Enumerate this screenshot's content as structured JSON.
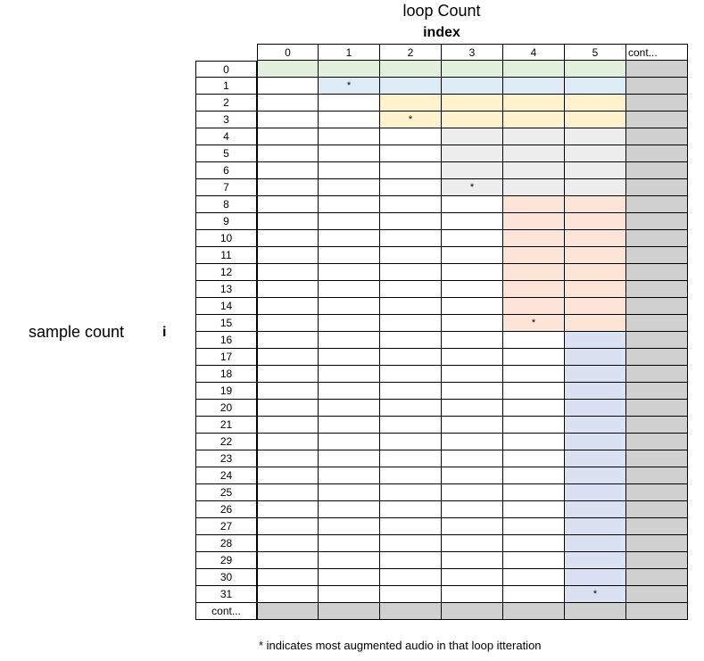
{
  "header": {
    "top_title": "loop Count",
    "sub_title": "index"
  },
  "side": {
    "label": "sample count",
    "variable": "i"
  },
  "table": {
    "col_headers": [
      "0",
      "1",
      "2",
      "3",
      "4",
      "5",
      "cont..."
    ],
    "row_headers": [
      "0",
      "1",
      "2",
      "3",
      "4",
      "5",
      "6",
      "7",
      "8",
      "9",
      "10",
      "11",
      "12",
      "13",
      "14",
      "15",
      "16",
      "17",
      "18",
      "19",
      "20",
      "21",
      "22",
      "23",
      "24",
      "25",
      "26",
      "27",
      "28",
      "29",
      "30",
      "31",
      "cont..."
    ],
    "star_symbol": "*",
    "colors": {
      "loop0": "#e2efda",
      "loop1": "#ddebf7",
      "loop2": "#fff2cc",
      "loop3": "#ededed",
      "loop4": "#fce4d6",
      "loop5": "#d9e1f2",
      "cont": "#d0d0d0",
      "blank": "#ffffff"
    },
    "loops": [
      {
        "col": 0,
        "rows": [
          0,
          0
        ],
        "star_row": null
      },
      {
        "col": 1,
        "rows": [
          1,
          1
        ],
        "star_row": 1
      },
      {
        "col": 2,
        "rows": [
          2,
          3
        ],
        "star_row": 3
      },
      {
        "col": 3,
        "rows": [
          4,
          7
        ],
        "star_row": 7
      },
      {
        "col": 4,
        "rows": [
          8,
          15
        ],
        "star_row": 15
      },
      {
        "col": 5,
        "rows": [
          16,
          31
        ],
        "star_row": 31
      }
    ]
  },
  "footnote": "* indicates most augmented audio in that loop itteration"
}
